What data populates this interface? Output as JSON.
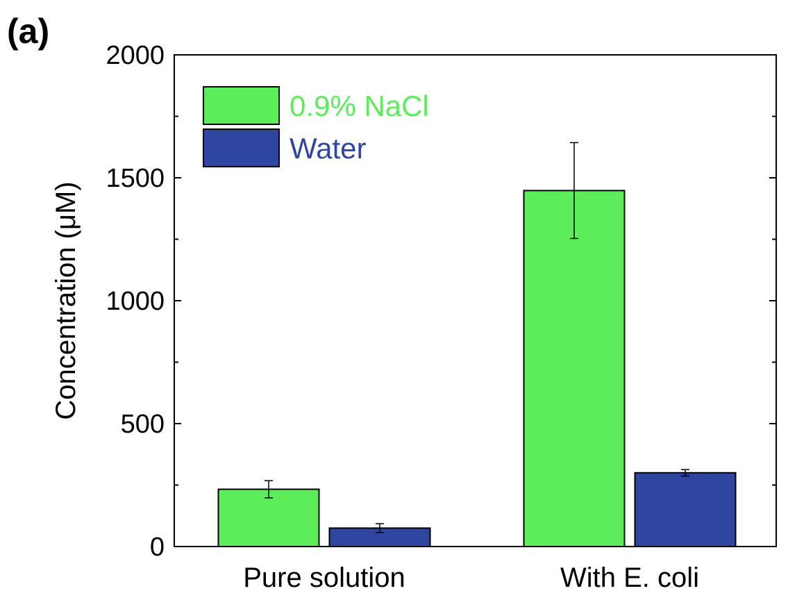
{
  "panel_label": "(a)",
  "colors": {
    "nacl": "#5ced5a",
    "water": "#2f46a0",
    "axis": "#000000"
  },
  "chart_data": {
    "type": "bar",
    "title": "",
    "xlabel": "",
    "ylabel": "Concentration (μM)",
    "ylim": [
      0,
      2000
    ],
    "yticks": [
      0,
      500,
      1000,
      1500,
      2000
    ],
    "ytick_labels": [
      "0",
      "500",
      "1000",
      "1500",
      "2000"
    ],
    "categories": [
      "Pure solution",
      "With E. coli"
    ],
    "legend_position": "top-left",
    "grid": false,
    "series": [
      {
        "name": "0.9% NaCl",
        "color": "#5ced5a",
        "values": [
          233,
          1448
        ],
        "errors": [
          35,
          195
        ]
      },
      {
        "name": "Water",
        "color": "#2f46a0",
        "values": [
          75,
          300
        ],
        "errors": [
          18,
          13
        ]
      }
    ]
  }
}
